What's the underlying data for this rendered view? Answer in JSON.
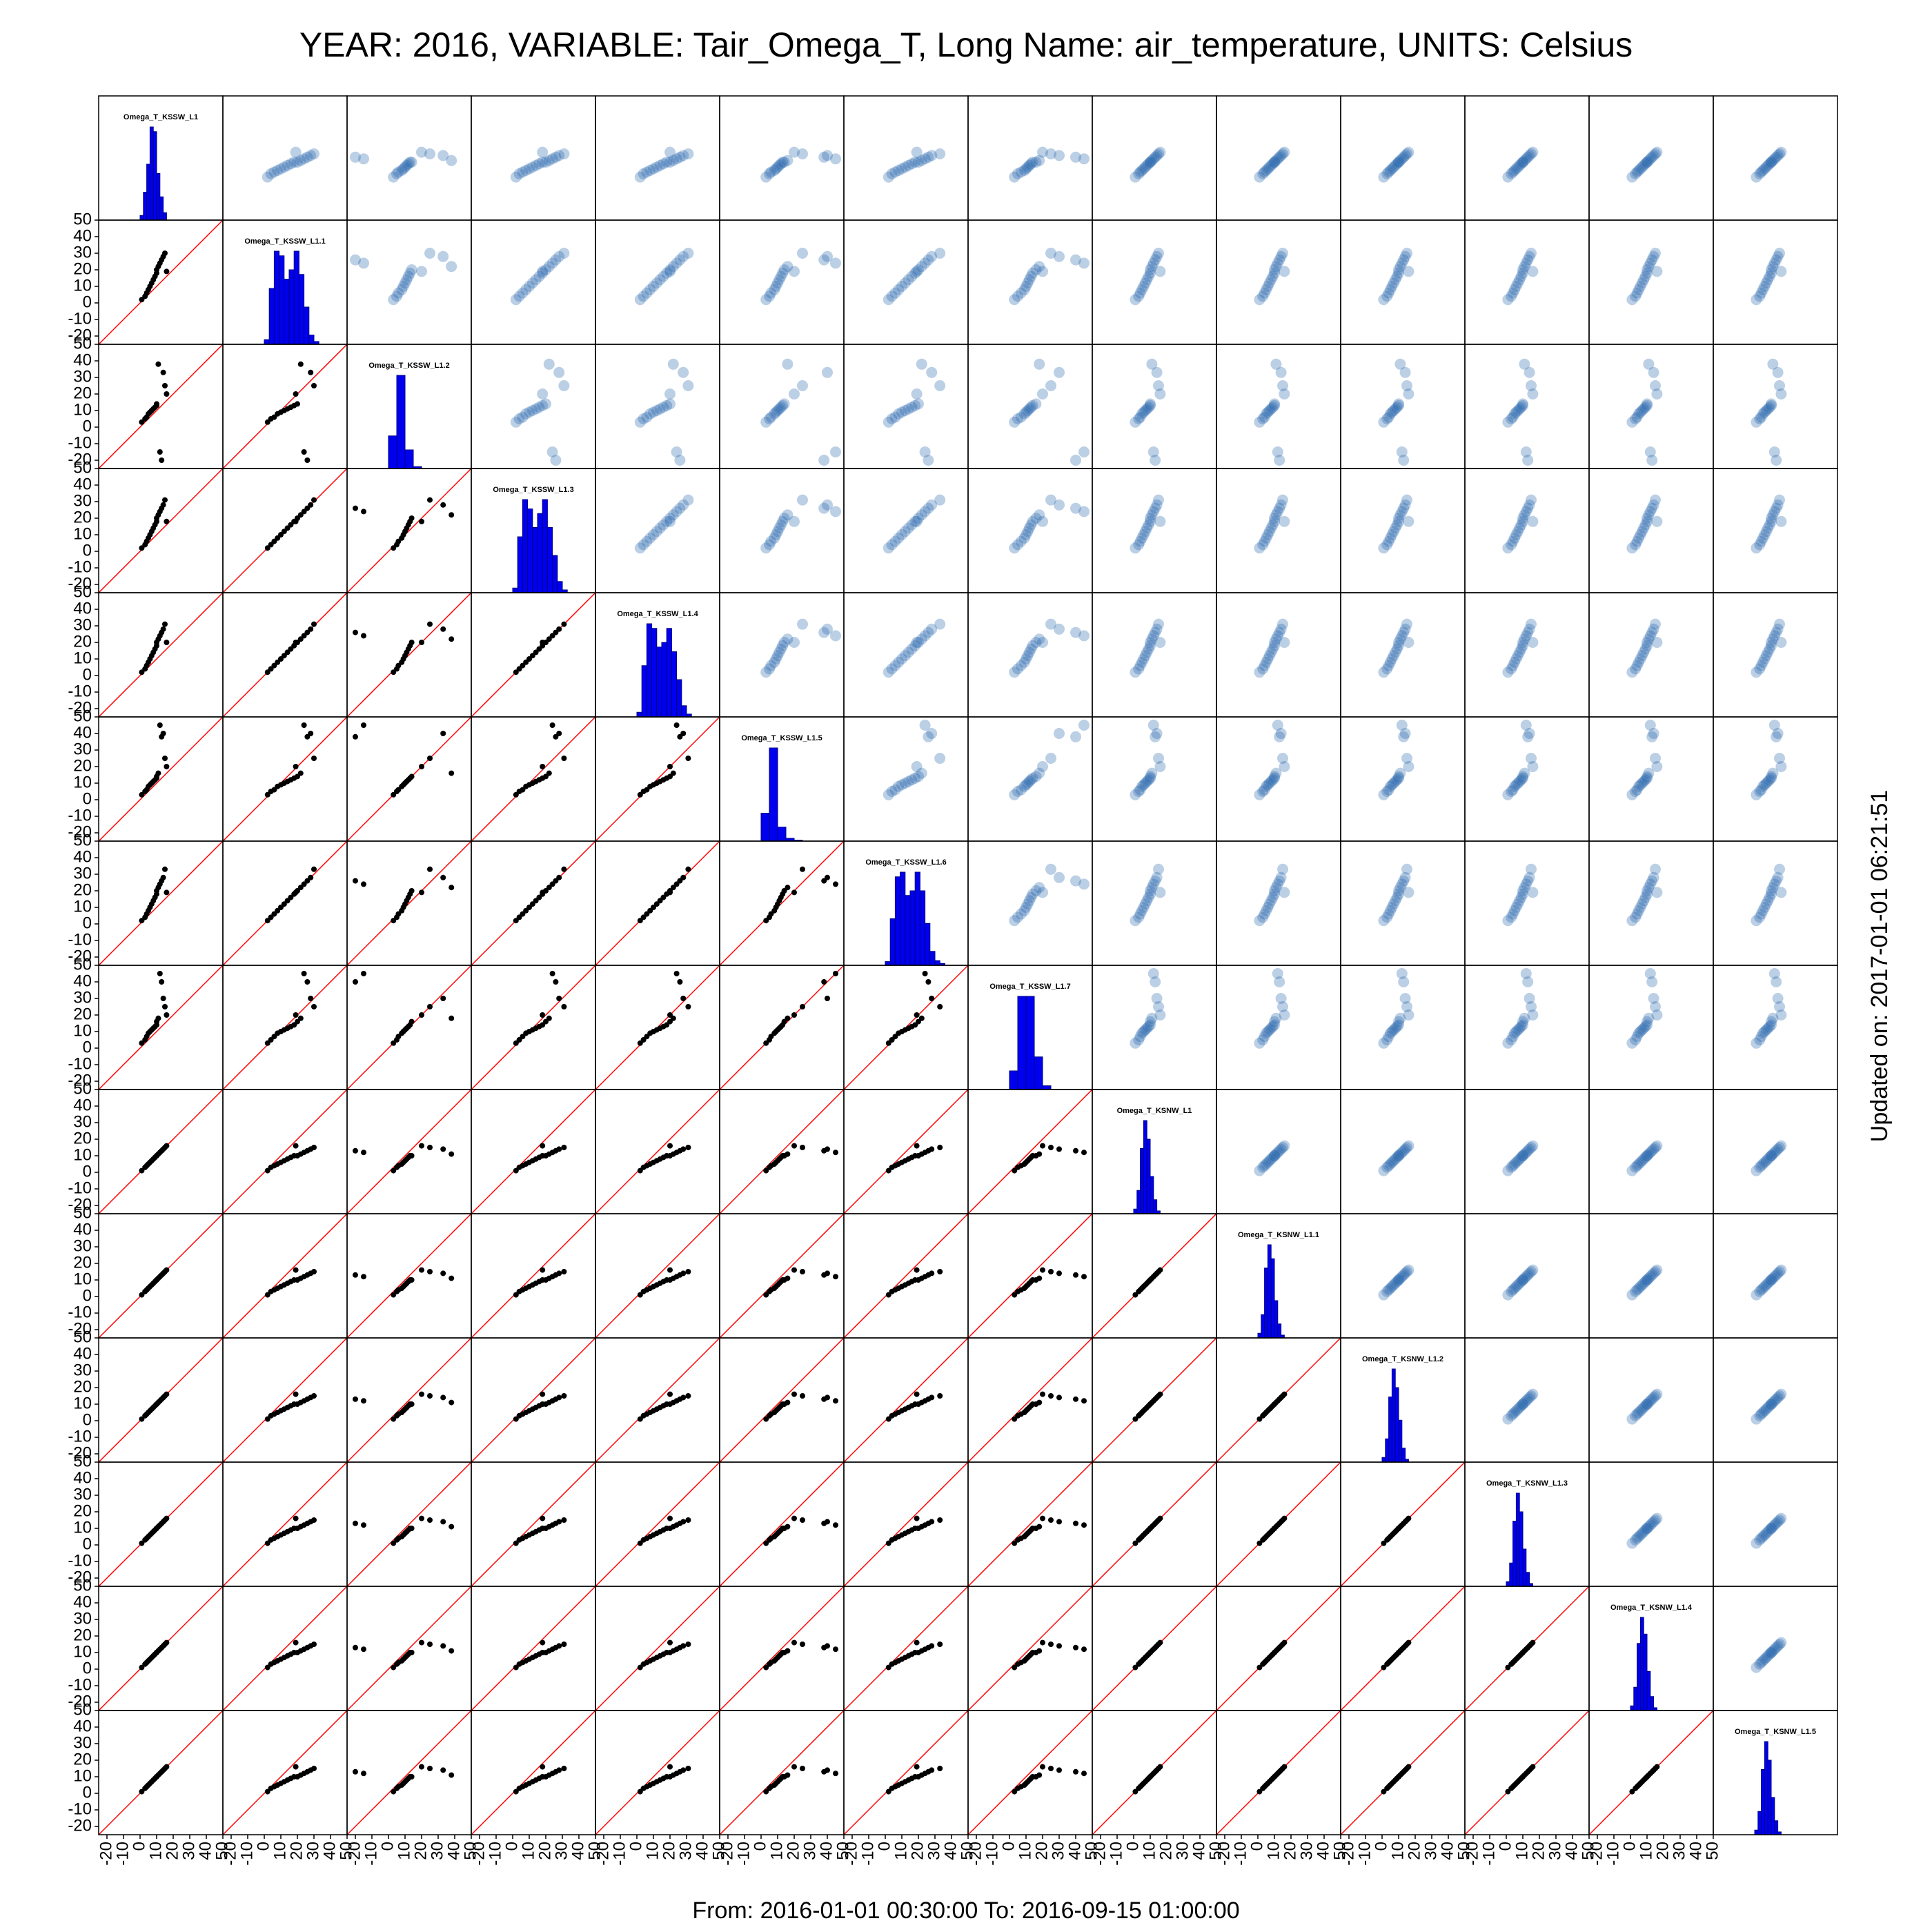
{
  "chart_data": {
    "type": "scatter_matrix",
    "title": "YEAR: 2016, VARIABLE: Tair_Omega_T, Long Name: air_temperature, UNITS: Celsius",
    "x_label": "From: 2016-01-01 00:30:00 To: 2016-09-15 01:00:00",
    "side_label": "Updated on: 2017-01-01 06:21:51",
    "xlim": [
      -25,
      50
    ],
    "ylim": [
      -25,
      50
    ],
    "xticks": [
      -20,
      -10,
      0,
      10,
      20,
      30,
      40,
      50
    ],
    "yticks": [
      -20,
      -10,
      0,
      10,
      20,
      30,
      40,
      50
    ],
    "hist_color": "#0000ee",
    "lower_color": "#000000",
    "upper_color": "#1f5fa8",
    "identity_color": "#ff0000",
    "variables": [
      {
        "name": "Omega_T_KSSW_L1",
        "values": [
          1,
          3,
          4,
          5,
          6,
          7,
          8,
          9,
          10,
          10,
          11,
          12,
          13,
          14,
          15,
          16
        ],
        "hist": {
          "bins": [
            0,
            2,
            4,
            6,
            8,
            10,
            12,
            14,
            16
          ],
          "counts": [
            5,
            30,
            60,
            100,
            95,
            50,
            25,
            8
          ]
        }
      },
      {
        "name": "Omega_T_KSSW_L1.1",
        "values": [
          2,
          4,
          6,
          8,
          10,
          12,
          14,
          16,
          18,
          20,
          22,
          24,
          26,
          28,
          30,
          19
        ],
        "hist": {
          "bins": [
            0,
            3,
            6,
            9,
            12,
            15,
            18,
            21,
            24,
            27,
            30,
            33
          ],
          "counts": [
            5,
            60,
            100,
            95,
            70,
            80,
            100,
            75,
            40,
            10,
            3
          ]
        }
      },
      {
        "name": "Omega_T_KSSW_L1.2",
        "values": [
          3,
          5,
          6,
          8,
          9,
          10,
          11,
          12,
          13,
          14,
          38,
          -15,
          -20,
          33,
          25,
          20
        ],
        "hist": {
          "bins": [
            0,
            5,
            10,
            15,
            20
          ],
          "counts": [
            35,
            100,
            20,
            2
          ]
        }
      },
      {
        "name": "Omega_T_KSSW_L1.3",
        "values": [
          2,
          4,
          6,
          8,
          10,
          12,
          14,
          16,
          18,
          20,
          22,
          24,
          26,
          28,
          31,
          18
        ],
        "hist": {
          "bins": [
            0,
            3,
            6,
            9,
            12,
            15,
            18,
            21,
            24,
            27,
            30,
            33
          ],
          "counts": [
            5,
            60,
            100,
            90,
            70,
            85,
            100,
            70,
            40,
            12,
            3
          ]
        }
      },
      {
        "name": "Omega_T_KSSW_L1.4",
        "values": [
          2,
          4,
          6,
          8,
          10,
          12,
          14,
          16,
          18,
          20,
          22,
          24,
          26,
          28,
          31,
          20
        ],
        "hist": {
          "bins": [
            0,
            3,
            6,
            9,
            12,
            15,
            18,
            21,
            24,
            27,
            30,
            33
          ],
          "counts": [
            5,
            55,
            100,
            95,
            75,
            80,
            95,
            70,
            40,
            12,
            3
          ]
        }
      },
      {
        "name": "Omega_T_KSSW_L1.5",
        "values": [
          3,
          5,
          6,
          8,
          9,
          10,
          11,
          12,
          13,
          14,
          16,
          45,
          38,
          40,
          25,
          20
        ],
        "hist": {
          "bins": [
            0,
            5,
            10,
            15,
            20,
            25
          ],
          "counts": [
            30,
            100,
            15,
            3,
            1
          ]
        }
      },
      {
        "name": "Omega_T_KSSW_L1.6",
        "values": [
          2,
          4,
          6,
          8,
          10,
          12,
          14,
          16,
          18,
          20,
          22,
          24,
          26,
          28,
          33,
          19
        ],
        "hist": {
          "bins": [
            0,
            3,
            6,
            9,
            12,
            15,
            18,
            21,
            24,
            27,
            30,
            33,
            36
          ],
          "counts": [
            4,
            50,
            95,
            100,
            75,
            80,
            100,
            80,
            45,
            15,
            5,
            2
          ]
        }
      },
      {
        "name": "Omega_T_KSSW_L1.7",
        "values": [
          3,
          5,
          7,
          9,
          10,
          11,
          12,
          13,
          14,
          16,
          18,
          45,
          40,
          30,
          25,
          20
        ],
        "hist": {
          "bins": [
            0,
            5,
            10,
            15,
            20,
            25
          ],
          "counts": [
            20,
            100,
            100,
            35,
            4
          ]
        }
      },
      {
        "name": "Omega_T_KSNW_L1",
        "values": [
          1,
          3,
          4,
          5,
          6,
          7,
          8,
          9,
          10,
          10,
          11,
          12,
          13,
          14,
          15,
          16
        ],
        "hist": {
          "bins": [
            0,
            2,
            4,
            6,
            8,
            10,
            12,
            14,
            16
          ],
          "counts": [
            5,
            25,
            70,
            100,
            80,
            40,
            15,
            3
          ]
        }
      },
      {
        "name": "Omega_T_KSNW_L1.1",
        "values": [
          1,
          3,
          4,
          5,
          6,
          7,
          8,
          9,
          10,
          10,
          11,
          12,
          13,
          14,
          15,
          16
        ],
        "hist": {
          "bins": [
            0,
            2,
            4,
            6,
            8,
            10,
            12,
            14,
            16
          ],
          "counts": [
            5,
            25,
            75,
            100,
            85,
            40,
            15,
            3
          ]
        }
      },
      {
        "name": "Omega_T_KSNW_L1.2",
        "values": [
          1,
          3,
          4,
          5,
          6,
          7,
          8,
          9,
          10,
          10,
          11,
          12,
          13,
          14,
          15,
          16
        ],
        "hist": {
          "bins": [
            0,
            2,
            4,
            6,
            8,
            10,
            12,
            14,
            16
          ],
          "counts": [
            5,
            25,
            70,
            100,
            80,
            45,
            15,
            3
          ]
        }
      },
      {
        "name": "Omega_T_KSNW_L1.3",
        "values": [
          1,
          3,
          4,
          5,
          6,
          7,
          8,
          9,
          10,
          10,
          11,
          12,
          13,
          14,
          15,
          16
        ],
        "hist": {
          "bins": [
            0,
            2,
            4,
            6,
            8,
            10,
            12,
            14,
            16
          ],
          "counts": [
            5,
            25,
            70,
            100,
            80,
            40,
            15,
            3
          ]
        }
      },
      {
        "name": "Omega_T_KSNW_L1.4",
        "values": [
          1,
          3,
          4,
          5,
          6,
          7,
          8,
          9,
          10,
          10,
          11,
          12,
          13,
          14,
          15,
          16
        ],
        "hist": {
          "bins": [
            0,
            2,
            4,
            6,
            8,
            10,
            12,
            14,
            16
          ],
          "counts": [
            5,
            25,
            72,
            100,
            82,
            42,
            15,
            3
          ]
        }
      },
      {
        "name": "Omega_T_KSNW_L1.5",
        "values": [
          1,
          3,
          4,
          5,
          6,
          7,
          8,
          9,
          10,
          10,
          11,
          12,
          13,
          14,
          15,
          16
        ],
        "hist": {
          "bins": [
            0,
            2,
            4,
            6,
            8,
            10,
            12,
            14,
            16
          ],
          "counts": [
            5,
            25,
            70,
            100,
            80,
            40,
            15,
            3
          ]
        }
      }
    ]
  }
}
